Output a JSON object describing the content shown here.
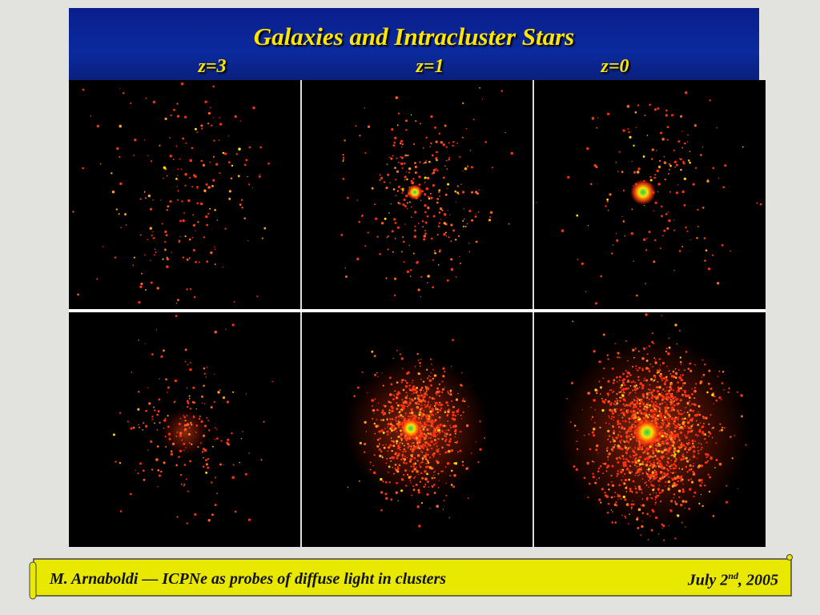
{
  "header": {
    "title": "Galaxies and Intracluster Stars",
    "labels": [
      "z=3",
      "z=1",
      "z=0"
    ]
  },
  "footer": {
    "left": "M. Arnaboldi — ICPNe as probes of diffuse light in clusters",
    "date": {
      "prefix": "July 2",
      "sup": "nd",
      "suffix": ", 2005"
    }
  }
}
